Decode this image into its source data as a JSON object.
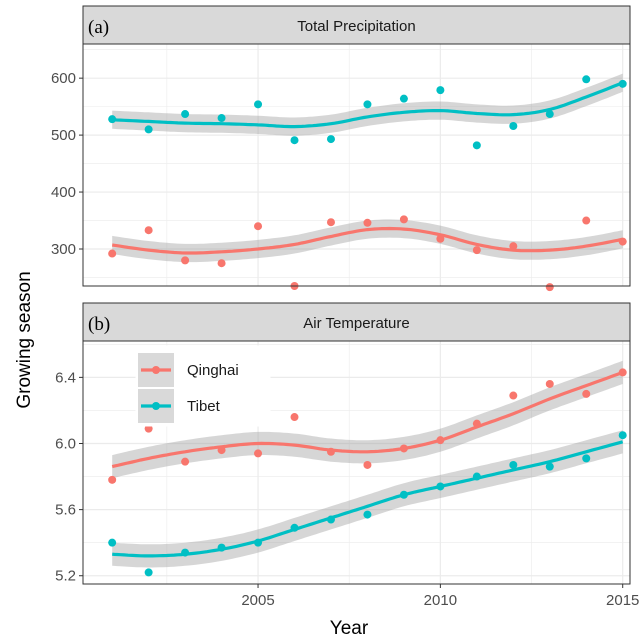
{
  "chart_data": [
    {
      "type": "scatter",
      "panel_tag": "(a)",
      "title": "Total Precipitation",
      "ylim": [
        235,
        660
      ],
      "yticks": [
        "300",
        "400",
        "500",
        "600"
      ],
      "ytick_values": [
        300,
        400,
        500,
        600
      ],
      "series": [
        {
          "name": "Qinghai",
          "x": [
            2001,
            2002,
            2003,
            2004,
            2005,
            2006,
            2007,
            2008,
            2009,
            2010,
            2011,
            2012,
            2013,
            2014,
            2015
          ],
          "values": [
            292,
            333,
            280,
            275,
            340,
            235,
            347,
            346,
            352,
            318,
            298,
            305,
            233,
            350,
            313
          ],
          "smooth": [
            307,
            298,
            293,
            295,
            300,
            308,
            322,
            334,
            335,
            325,
            308,
            298,
            298,
            305,
            317
          ]
        },
        {
          "name": "Tibet",
          "x": [
            2001,
            2002,
            2003,
            2004,
            2005,
            2006,
            2007,
            2008,
            2009,
            2010,
            2011,
            2012,
            2013,
            2014,
            2015
          ],
          "values": [
            528,
            510,
            537,
            530,
            554,
            491,
            493,
            554,
            564,
            579,
            482,
            516,
            537,
            598,
            590
          ],
          "smooth": [
            527,
            524,
            521,
            520,
            518,
            515,
            520,
            532,
            540,
            543,
            538,
            536,
            545,
            567,
            592
          ]
        }
      ]
    },
    {
      "type": "scatter",
      "panel_tag": "(b)",
      "title": "Air Temperature",
      "ylim": [
        5.15,
        6.62
      ],
      "yticks": [
        "5.2",
        "5.6",
        "6.0",
        "6.4"
      ],
      "ytick_values": [
        5.2,
        5.6,
        6.0,
        6.4
      ],
      "series": [
        {
          "name": "Qinghai",
          "x": [
            2001,
            2002,
            2003,
            2004,
            2005,
            2006,
            2007,
            2008,
            2009,
            2010,
            2011,
            2012,
            2013,
            2014,
            2015
          ],
          "values": [
            5.78,
            6.09,
            5.89,
            5.96,
            5.94,
            6.16,
            5.95,
            5.87,
            5.97,
            6.02,
            6.12,
            6.29,
            6.36,
            6.3,
            6.43
          ],
          "smooth": [
            5.86,
            5.91,
            5.95,
            5.98,
            6.0,
            5.99,
            5.96,
            5.95,
            5.97,
            6.02,
            6.1,
            6.18,
            6.27,
            6.35,
            6.43
          ]
        },
        {
          "name": "Tibet",
          "x": [
            2001,
            2002,
            2003,
            2004,
            2005,
            2006,
            2007,
            2008,
            2009,
            2010,
            2011,
            2012,
            2013,
            2014,
            2015
          ],
          "values": [
            5.4,
            5.22,
            5.34,
            5.37,
            5.4,
            5.49,
            5.54,
            5.57,
            5.69,
            5.74,
            5.8,
            5.87,
            5.86,
            5.91,
            6.05
          ],
          "smooth": [
            5.33,
            5.32,
            5.33,
            5.36,
            5.41,
            5.48,
            5.55,
            5.62,
            5.69,
            5.74,
            5.79,
            5.84,
            5.89,
            5.95,
            6.01
          ]
        }
      ]
    }
  ],
  "x_axis": {
    "label": "Year",
    "ticks": [
      "2005",
      "2010",
      "2015"
    ],
    "tick_values": [
      2005,
      2010,
      2015
    ],
    "xlim": [
      2000.2,
      2015.2
    ]
  },
  "y_axis": {
    "label": "Growing season"
  },
  "legend": {
    "placement": "top-left of panel (b)",
    "entries": [
      "Qinghai",
      "Tibet"
    ]
  },
  "colors": {
    "Qinghai": "#F8766D",
    "Tibet": "#00BFC4",
    "ribbon": "#999999",
    "strip": "#d9d9d9",
    "grid": "#ebebeb"
  },
  "grid": true
}
